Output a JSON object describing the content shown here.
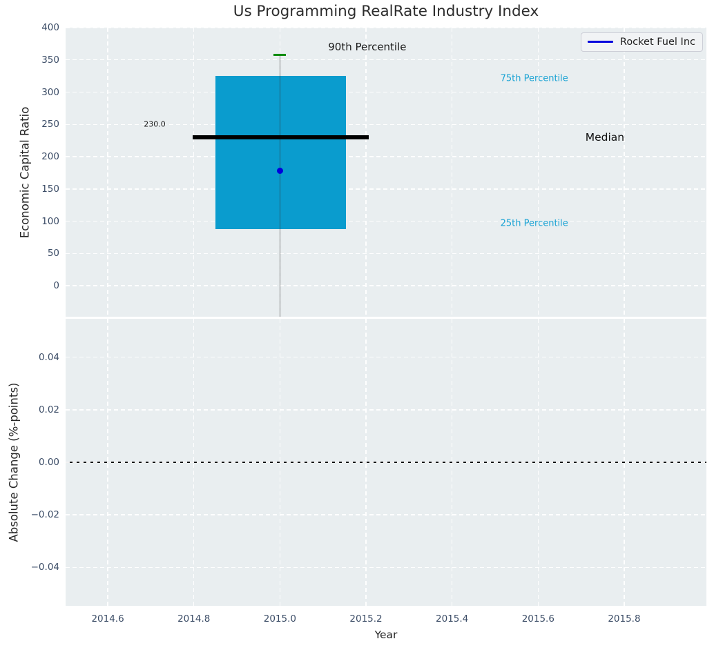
{
  "colors": {
    "figure_background": "#ffffff",
    "axes_background": "#e9eef0",
    "grid": "#ffffff",
    "tick_label": "#3b4c66",
    "title": "#2d2d2d",
    "box_fill": "#0a9cce",
    "median_line": "#000000",
    "whisker_cap": "#0f8b0f",
    "company_marker": "#0000dd",
    "percentile_label": "#1aa3d4",
    "zero_line": "#000000"
  },
  "chart_data": [
    {
      "type": "boxplot",
      "title": "Us Programming RealRate Industry Index",
      "ylabel": "Economic Capital Ratio",
      "xlim": [
        2014.502,
        2015.991
      ],
      "ylim": [
        -48,
        400
      ],
      "yticks": [
        400,
        350,
        300,
        250,
        200,
        150,
        100,
        50,
        0
      ],
      "ytick_labels": [
        "400",
        "350",
        "300",
        "250",
        "200",
        "150",
        "100",
        "50",
        "0"
      ],
      "xticks": [
        2014.6,
        2014.8,
        2015.0,
        2015.2,
        2015.4,
        2015.6,
        2015.8
      ],
      "grid": true,
      "legend": {
        "label": "Rocket Fuel Inc",
        "position": "upper right",
        "line_color": "#0000dd"
      },
      "box": {
        "x_center": 2015.0,
        "box_x_range": [
          2014.85,
          2015.154
        ],
        "median_x_range": [
          2014.797,
          2015.207
        ],
        "q1": 88,
        "q3": 325,
        "median": 230,
        "p90": 358,
        "whisker_extends_to_bottom_edge": true
      },
      "company_point": {
        "label": "Rocket Fuel Inc",
        "x": 2015.0,
        "y": 178
      },
      "annotations": [
        {
          "text": "90th Percentile",
          "x": 2015.203,
          "y": 370,
          "color": "#1a1a1a",
          "size": 15
        },
        {
          "text": "75th Percentile",
          "x": 2015.591,
          "y": 321,
          "color": "#1aa3d4",
          "size": 13
        },
        {
          "text": "Median",
          "x": 2015.755,
          "y": 230,
          "color": "#111111",
          "size": 15.5
        },
        {
          "text": "25th Percentile",
          "x": 2015.591,
          "y": 96,
          "color": "#1aa3d4",
          "size": 13
        },
        {
          "text": "230.0",
          "x": 2014.709,
          "y": 250,
          "color": "#1a1a1a",
          "size": 11
        }
      ]
    },
    {
      "type": "line",
      "ylabel": "Absolute Change (%-points)",
      "xlabel": "Year",
      "xlim": [
        2014.502,
        2015.991
      ],
      "ylim": [
        -0.0546,
        0.0546
      ],
      "yticks": [
        0.04,
        0.02,
        0.0,
        -0.02,
        -0.04
      ],
      "ytick_labels": [
        "0.04",
        "0.02",
        "0.00",
        "−0.02",
        "−0.04"
      ],
      "xticks": [
        2014.6,
        2014.8,
        2015.0,
        2015.2,
        2015.4,
        2015.6,
        2015.8
      ],
      "xtick_labels": [
        "2014.6",
        "2014.8",
        "2015.0",
        "2015.2",
        "2015.4",
        "2015.6",
        "2015.8"
      ],
      "grid": true,
      "zero_line": 0.0,
      "series": []
    }
  ]
}
